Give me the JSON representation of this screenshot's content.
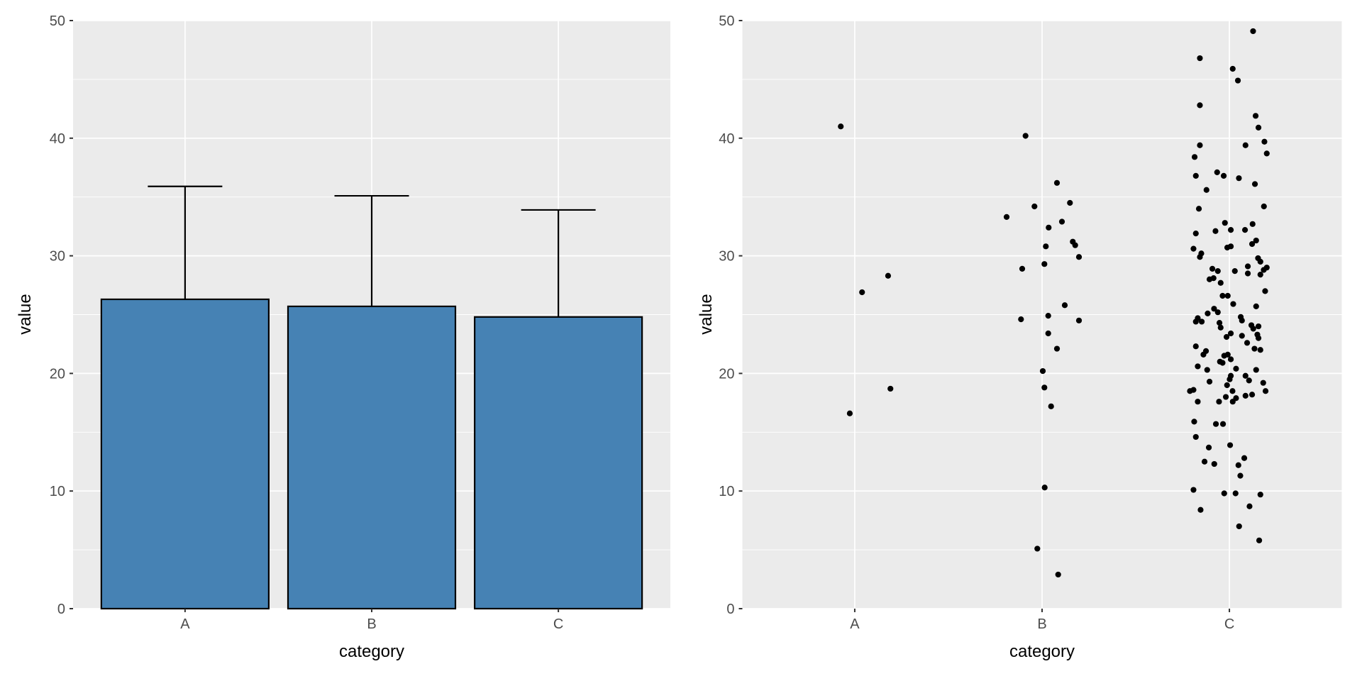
{
  "page": {
    "background": "#FFFFFF"
  },
  "axis_style": {
    "tick_label_color": "#4D4D4D",
    "tick_mark_color": "#333333",
    "title_color": "#000000",
    "panel_bg": "#EBEBEB",
    "grid_color": "#FFFFFF"
  },
  "chart_data": [
    {
      "id": "bar",
      "type": "bar",
      "title": "",
      "xlabel": "category",
      "ylabel": "value",
      "categories": [
        "A",
        "B",
        "C"
      ],
      "values": [
        26.3,
        25.7,
        24.8
      ],
      "error_top": [
        35.9,
        35.1,
        33.9
      ],
      "ylim": [
        0,
        50
      ],
      "yticks": [
        0,
        10,
        20,
        30,
        40,
        50
      ],
      "yticks_minor": [
        5,
        15,
        25,
        35,
        45
      ],
      "bar_fill": "#4682B4",
      "bar_stroke": "#000000",
      "error_color": "#000000",
      "panel_bg": "#EBEBEB",
      "grid_color": "#FFFFFF",
      "legend": "none",
      "grid": true
    },
    {
      "id": "jitter",
      "type": "scatter",
      "title": "",
      "xlabel": "category",
      "ylabel": "value",
      "categories": [
        "A",
        "B",
        "C"
      ],
      "ylim": [
        0,
        50
      ],
      "yticks": [
        0,
        10,
        20,
        30,
        40,
        50
      ],
      "yticks_minor": [
        5,
        15,
        25,
        35,
        45
      ],
      "point_color": "#000000",
      "panel_bg": "#EBEBEB",
      "grid_color": "#FFFFFF",
      "legend": "none",
      "grid": true,
      "series": [
        {
          "name": "A",
          "points": [
            [
              -19.7,
              41.0
            ],
            [
              47.0,
              28.3
            ],
            [
              10.3,
              26.9
            ],
            [
              50.3,
              18.7
            ],
            [
              -7.0,
              16.6
            ]
          ]
        },
        {
          "name": "B",
          "points": [
            [
              -23.3,
              40.2
            ],
            [
              21.0,
              36.2
            ],
            [
              39.3,
              34.5
            ],
            [
              -10.7,
              34.2
            ],
            [
              -50.0,
              33.3
            ],
            [
              28.0,
              32.9
            ],
            [
              9.3,
              32.4
            ],
            [
              43.3,
              31.2
            ],
            [
              46.7,
              30.9
            ],
            [
              5.3,
              30.8
            ],
            [
              52.0,
              29.9
            ],
            [
              3.3,
              29.3
            ],
            [
              -28.0,
              28.9
            ],
            [
              32.0,
              25.8
            ],
            [
              8.7,
              24.9
            ],
            [
              -29.7,
              24.6
            ],
            [
              52.0,
              24.5
            ],
            [
              8.7,
              23.4
            ],
            [
              21.0,
              22.1
            ],
            [
              1.0,
              20.2
            ],
            [
              3.3,
              18.8
            ],
            [
              12.7,
              17.2
            ],
            [
              3.7,
              10.3
            ],
            [
              -6.7,
              5.1
            ],
            [
              22.7,
              2.9
            ]
          ]
        },
        {
          "name": "C",
          "points": [
            [
              33.4,
              49.1
            ],
            [
              -41.6,
              46.8
            ],
            [
              4.7,
              45.9
            ],
            [
              12.0,
              44.9
            ],
            [
              -41.6,
              42.8
            ],
            [
              37.0,
              41.9
            ],
            [
              41.0,
              40.9
            ],
            [
              49.4,
              39.7
            ],
            [
              22.7,
              39.4
            ],
            [
              52.7,
              38.7
            ],
            [
              -41.6,
              39.4
            ],
            [
              -49.0,
              38.4
            ],
            [
              -47.3,
              36.8
            ],
            [
              -17.3,
              37.1
            ],
            [
              -8.0,
              36.8
            ],
            [
              13.4,
              36.6
            ],
            [
              36.0,
              36.1
            ],
            [
              -32.3,
              35.6
            ],
            [
              -43.0,
              34.0
            ],
            [
              48.7,
              34.2
            ],
            [
              -6.3,
              32.8
            ],
            [
              32.7,
              32.7
            ],
            [
              2.0,
              32.2
            ],
            [
              -47.3,
              31.9
            ],
            [
              -19.6,
              32.1
            ],
            [
              22.0,
              32.2
            ],
            [
              37.7,
              31.3
            ],
            [
              32.0,
              31.0
            ],
            [
              -50.6,
              30.6
            ],
            [
              -3.0,
              30.7
            ],
            [
              2.0,
              30.8
            ],
            [
              -39.6,
              30.2
            ],
            [
              -41.6,
              29.9
            ],
            [
              40.4,
              29.8
            ],
            [
              43.7,
              29.5
            ],
            [
              26.0,
              29.1
            ],
            [
              -24.0,
              28.9
            ],
            [
              -16.3,
              28.7
            ],
            [
              7.7,
              28.7
            ],
            [
              26.0,
              28.5
            ],
            [
              48.4,
              28.8
            ],
            [
              52.7,
              29.0
            ],
            [
              43.7,
              28.4
            ],
            [
              -28.0,
              28.0
            ],
            [
              -22.3,
              28.1
            ],
            [
              -12.3,
              27.7
            ],
            [
              50.4,
              27.0
            ],
            [
              -9.6,
              26.6
            ],
            [
              -2.3,
              26.6
            ],
            [
              5.4,
              25.9
            ],
            [
              37.7,
              25.7
            ],
            [
              -21.6,
              25.5
            ],
            [
              -16.3,
              25.2
            ],
            [
              -30.6,
              25.1
            ],
            [
              -44.6,
              24.7
            ],
            [
              -39.0,
              24.4
            ],
            [
              -47.3,
              24.4
            ],
            [
              16.0,
              24.8
            ],
            [
              17.7,
              24.5
            ],
            [
              -14.0,
              24.3
            ],
            [
              -12.3,
              23.9
            ],
            [
              31.0,
              24.1
            ],
            [
              33.7,
              23.8
            ],
            [
              41.0,
              24.0
            ],
            [
              2.0,
              23.4
            ],
            [
              -4.0,
              23.1
            ],
            [
              17.7,
              23.2
            ],
            [
              39.4,
              23.3
            ],
            [
              41.0,
              23.0
            ],
            [
              25.0,
              22.6
            ],
            [
              -47.3,
              22.3
            ],
            [
              -33.0,
              21.9
            ],
            [
              35.4,
              22.1
            ],
            [
              43.7,
              22.0
            ],
            [
              -2.3,
              21.6
            ],
            [
              -7.3,
              21.5
            ],
            [
              -36.6,
              21.6
            ],
            [
              2.0,
              21.2
            ],
            [
              -13.3,
              21.0
            ],
            [
              -9.6,
              20.9
            ],
            [
              -44.6,
              20.6
            ],
            [
              9.4,
              20.4
            ],
            [
              -31.3,
              20.3
            ],
            [
              37.7,
              20.3
            ],
            [
              22.7,
              19.8
            ],
            [
              2.0,
              19.8
            ],
            [
              0.4,
              19.5
            ],
            [
              27.7,
              19.4
            ],
            [
              -28.0,
              19.3
            ],
            [
              -3.3,
              19.0
            ],
            [
              47.7,
              19.2
            ],
            [
              -50.6,
              18.6
            ],
            [
              -55.6,
              18.5
            ],
            [
              -5.0,
              18.0
            ],
            [
              4.4,
              18.5
            ],
            [
              9.4,
              17.9
            ],
            [
              22.7,
              18.1
            ],
            [
              32.0,
              18.2
            ],
            [
              51.0,
              18.5
            ],
            [
              -44.6,
              17.6
            ],
            [
              -14.6,
              17.6
            ],
            [
              4.7,
              17.6
            ],
            [
              -49.6,
              15.9
            ],
            [
              -19.0,
              15.7
            ],
            [
              -9.0,
              15.7
            ],
            [
              -47.3,
              14.6
            ],
            [
              -29.0,
              13.7
            ],
            [
              1.0,
              13.9
            ],
            [
              -35.0,
              12.5
            ],
            [
              -21.3,
              12.3
            ],
            [
              21.0,
              12.8
            ],
            [
              12.7,
              12.2
            ],
            [
              15.4,
              11.3
            ],
            [
              -50.6,
              10.1
            ],
            [
              -7.3,
              9.8
            ],
            [
              8.7,
              9.8
            ],
            [
              43.7,
              9.7
            ],
            [
              28.4,
              8.7
            ],
            [
              -40.6,
              8.4
            ],
            [
              13.7,
              7.0
            ],
            [
              42.0,
              5.8
            ]
          ]
        }
      ]
    }
  ]
}
